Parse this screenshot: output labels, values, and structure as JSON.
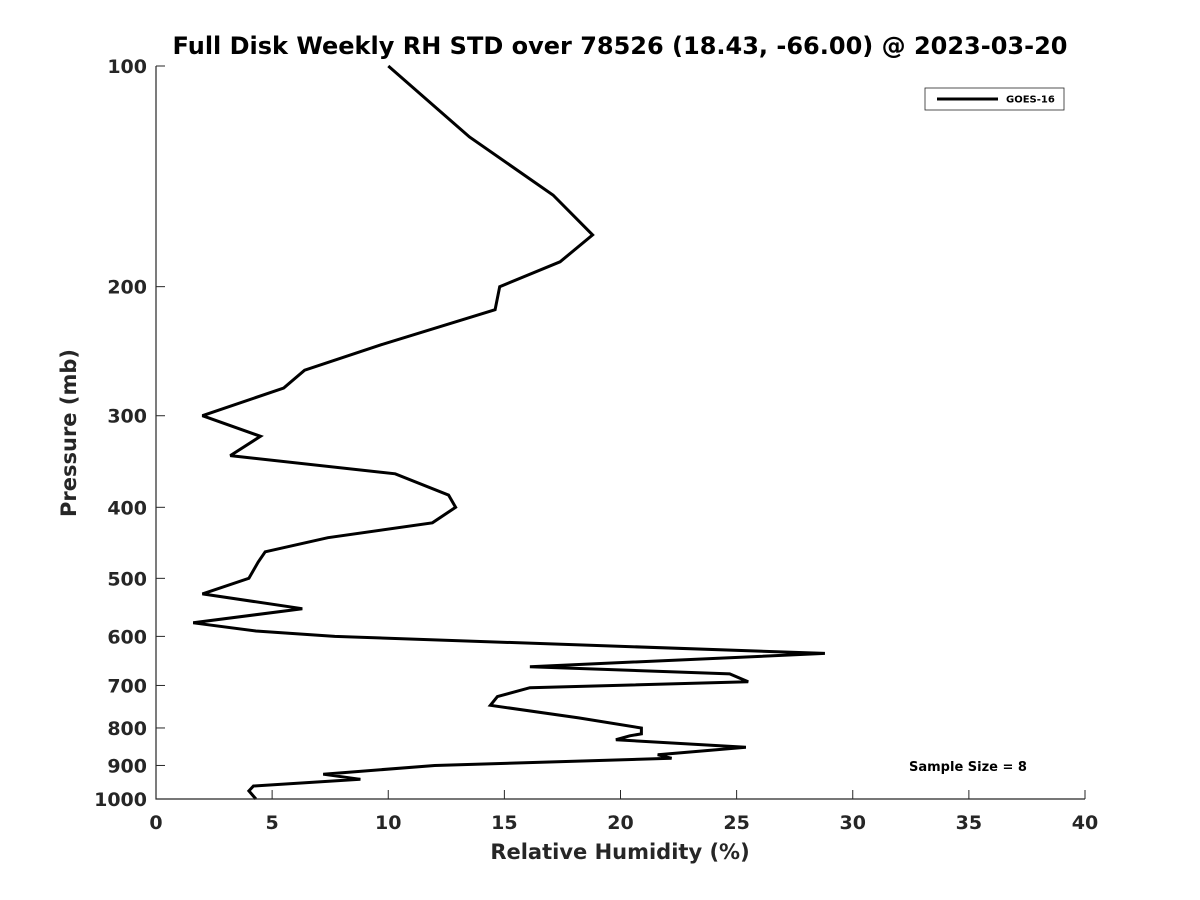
{
  "chart_data": {
    "type": "line",
    "title": "Full Disk Weekly RH STD over 78526 (18.43, -66.00) @ 2023-03-20",
    "xlabel": "Relative Humidity (%)",
    "ylabel": "Pressure (mb)",
    "xlim": [
      0,
      40
    ],
    "ylim": [
      100,
      1000
    ],
    "y_scale": "log",
    "y_reversed": true,
    "x_ticks": [
      "0",
      "5",
      "10",
      "15",
      "20",
      "25",
      "30",
      "35",
      "40"
    ],
    "y_ticks": [
      "100",
      "200",
      "300",
      "400",
      "500",
      "600",
      "700",
      "800",
      "900",
      "1000"
    ],
    "grid": false,
    "legend": {
      "placement": "top-right",
      "entries": [
        "GOES-16"
      ]
    },
    "annotation": "Sample Size = 8",
    "series": [
      {
        "name": "GOES-16",
        "color": "#000000",
        "points": [
          [
            10.0,
            100
          ],
          [
            13.5,
            125
          ],
          [
            17.1,
            150
          ],
          [
            18.8,
            170
          ],
          [
            17.4,
            185
          ],
          [
            14.8,
            200
          ],
          [
            14.6,
            215
          ],
          [
            9.7,
            240
          ],
          [
            6.4,
            260
          ],
          [
            5.5,
            275
          ],
          [
            2.0,
            300
          ],
          [
            4.5,
            320
          ],
          [
            3.2,
            340
          ],
          [
            10.3,
            360
          ],
          [
            12.6,
            385
          ],
          [
            12.9,
            400
          ],
          [
            11.9,
            420
          ],
          [
            7.4,
            440
          ],
          [
            4.7,
            460
          ],
          [
            4.4,
            475
          ],
          [
            4.0,
            500
          ],
          [
            2.0,
            525
          ],
          [
            6.3,
            550
          ],
          [
            1.6,
            575
          ],
          [
            4.3,
            590
          ],
          [
            7.7,
            600
          ],
          [
            28.8,
            633
          ],
          [
            16.1,
            660
          ],
          [
            24.7,
            675
          ],
          [
            25.5,
            692
          ],
          [
            16.1,
            705
          ],
          [
            14.7,
            725
          ],
          [
            14.4,
            745
          ],
          [
            18.2,
            775
          ],
          [
            20.9,
            800
          ],
          [
            20.9,
            815
          ],
          [
            20.4,
            820
          ],
          [
            19.8,
            830
          ],
          [
            25.4,
            850
          ],
          [
            21.6,
            870
          ],
          [
            22.2,
            880
          ],
          [
            12.0,
            900
          ],
          [
            7.2,
            925
          ],
          [
            8.8,
            940
          ],
          [
            4.2,
            960
          ],
          [
            4.0,
            975
          ],
          [
            4.3,
            1000
          ]
        ]
      }
    ]
  }
}
